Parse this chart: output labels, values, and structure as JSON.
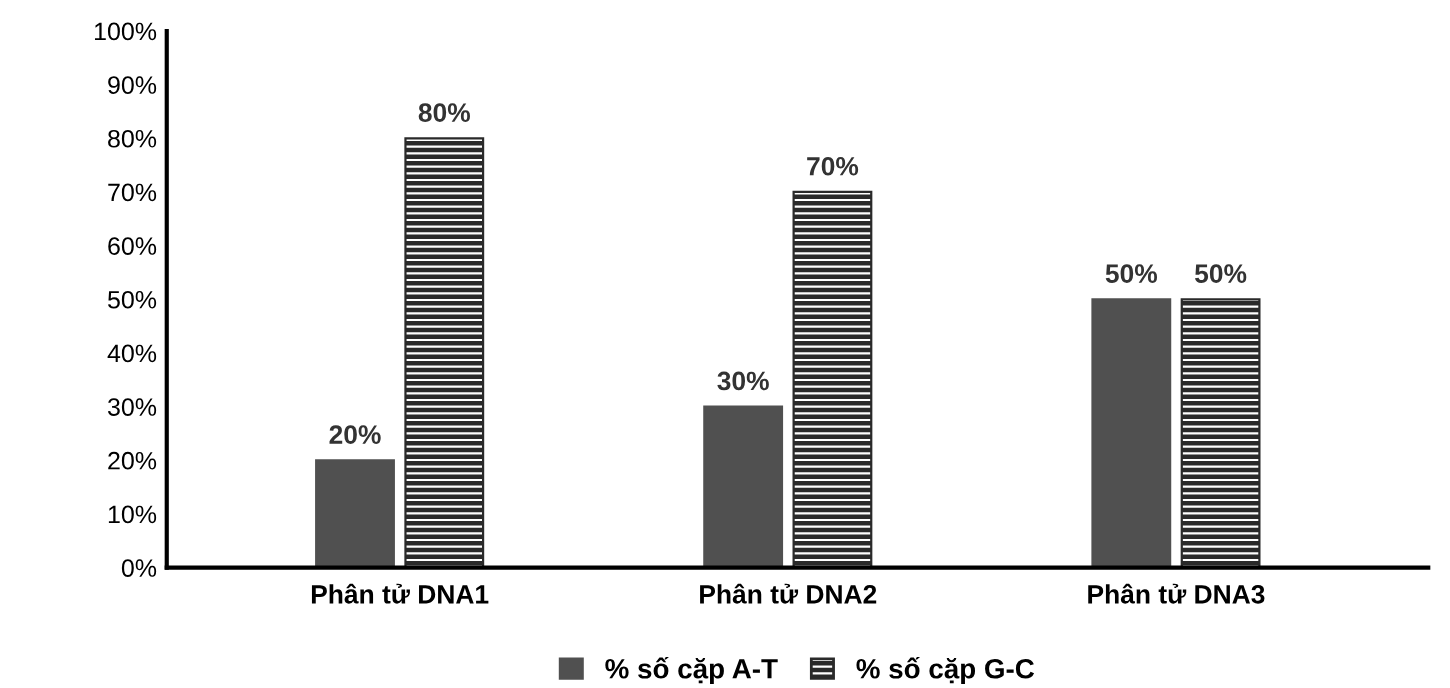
{
  "chart_data": {
    "type": "bar",
    "categories": [
      "Phân tử DNA1",
      "Phân tử DNA2",
      "Phân tử DNA3"
    ],
    "series": [
      {
        "name": "% số cặp A-T",
        "color": "#505050",
        "values": [
          20,
          30,
          50
        ],
        "value_labels": [
          "20%",
          "30%",
          "50%"
        ]
      },
      {
        "name": "% số cặp G-C",
        "color": "#2a2a2a",
        "values": [
          80,
          70,
          50
        ],
        "value_labels": [
          "80%",
          "70%",
          "50%"
        ]
      }
    ],
    "ylim": [
      0,
      100
    ],
    "yticks": [
      {
        "value": 0,
        "label": "0%"
      },
      {
        "value": 10,
        "label": "10%"
      },
      {
        "value": 20,
        "label": "20%"
      },
      {
        "value": 30,
        "label": "30%"
      },
      {
        "value": 40,
        "label": "40%"
      },
      {
        "value": 50,
        "label": "50%"
      },
      {
        "value": 60,
        "label": "60%"
      },
      {
        "value": 70,
        "label": "70%"
      },
      {
        "value": 80,
        "label": "80%"
      },
      {
        "value": 90,
        "label": "90%"
      },
      {
        "value": 100,
        "label": "100%"
      }
    ],
    "grid": false,
    "legend": "bottom"
  }
}
